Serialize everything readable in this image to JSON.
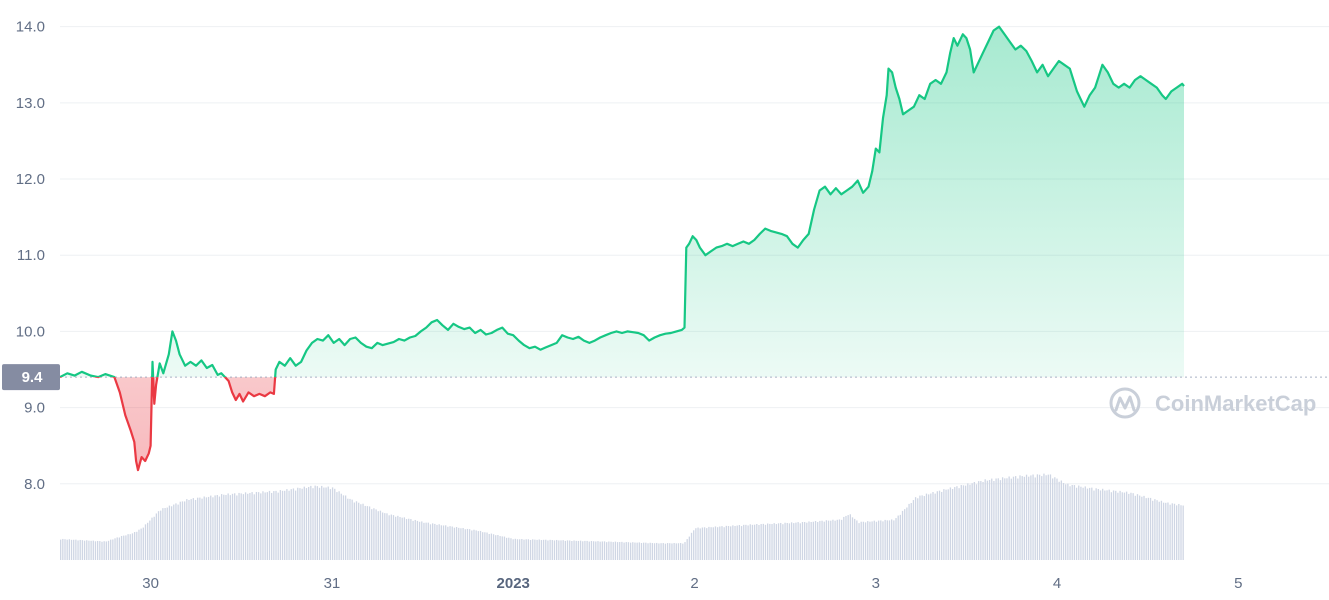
{
  "chart_data": {
    "type": "area",
    "y_ticks": [
      "14.0",
      "13.0",
      "12.0",
      "11.0",
      "10.0",
      "9.0",
      "8.0"
    ],
    "y_tick_values": [
      14.0,
      13.0,
      12.0,
      11.0,
      10.0,
      9.0,
      8.0
    ],
    "ylim": [
      7.0,
      14.35
    ],
    "x_ticks": [
      {
        "label": "30",
        "t": 0.5,
        "bold": false
      },
      {
        "label": "31",
        "t": 1.5,
        "bold": false
      },
      {
        "label": "2023",
        "t": 2.5,
        "bold": true
      },
      {
        "label": "2",
        "t": 3.5,
        "bold": false
      },
      {
        "label": "3",
        "t": 4.5,
        "bold": false
      },
      {
        "label": "4",
        "t": 5.5,
        "bold": false
      },
      {
        "label": "5",
        "t": 6.5,
        "bold": false
      }
    ],
    "xlim": [
      0.0,
      7.0
    ],
    "baseline": {
      "label": "9.4",
      "value": 9.4
    },
    "colors": {
      "up": "#16c784",
      "down": "#ea3943",
      "volume": "#cfd6e4",
      "tag_bg": "#858ca2",
      "grid": "#eef0f3"
    },
    "watermark": "CoinMarketCap",
    "price_series": [
      [
        0.0,
        9.4
      ],
      [
        0.04,
        9.45
      ],
      [
        0.08,
        9.42
      ],
      [
        0.12,
        9.47
      ],
      [
        0.17,
        9.42
      ],
      [
        0.21,
        9.4
      ],
      [
        0.25,
        9.44
      ],
      [
        0.3,
        9.4
      ],
      [
        0.33,
        9.2
      ],
      [
        0.36,
        8.9
      ],
      [
        0.39,
        8.7
      ],
      [
        0.41,
        8.55
      ],
      [
        0.42,
        8.3
      ],
      [
        0.43,
        8.18
      ],
      [
        0.45,
        8.35
      ],
      [
        0.47,
        8.3
      ],
      [
        0.49,
        8.4
      ],
      [
        0.5,
        8.5
      ],
      [
        0.51,
        9.6
      ],
      [
        0.52,
        9.05
      ],
      [
        0.53,
        9.3
      ],
      [
        0.55,
        9.58
      ],
      [
        0.57,
        9.45
      ],
      [
        0.6,
        9.7
      ],
      [
        0.62,
        10.0
      ],
      [
        0.64,
        9.88
      ],
      [
        0.66,
        9.7
      ],
      [
        0.69,
        9.55
      ],
      [
        0.72,
        9.6
      ],
      [
        0.75,
        9.55
      ],
      [
        0.78,
        9.62
      ],
      [
        0.81,
        9.52
      ],
      [
        0.84,
        9.56
      ],
      [
        0.87,
        9.43
      ],
      [
        0.89,
        9.45
      ],
      [
        0.91,
        9.4
      ],
      [
        0.93,
        9.35
      ],
      [
        0.95,
        9.2
      ],
      [
        0.97,
        9.1
      ],
      [
        0.99,
        9.18
      ],
      [
        1.01,
        9.08
      ],
      [
        1.04,
        9.2
      ],
      [
        1.07,
        9.15
      ],
      [
        1.1,
        9.18
      ],
      [
        1.13,
        9.15
      ],
      [
        1.16,
        9.2
      ],
      [
        1.18,
        9.18
      ],
      [
        1.19,
        9.5
      ],
      [
        1.21,
        9.6
      ],
      [
        1.24,
        9.55
      ],
      [
        1.27,
        9.65
      ],
      [
        1.3,
        9.55
      ],
      [
        1.33,
        9.6
      ],
      [
        1.36,
        9.75
      ],
      [
        1.39,
        9.85
      ],
      [
        1.42,
        9.9
      ],
      [
        1.45,
        9.88
      ],
      [
        1.48,
        9.95
      ],
      [
        1.51,
        9.85
      ],
      [
        1.54,
        9.9
      ],
      [
        1.57,
        9.82
      ],
      [
        1.6,
        9.9
      ],
      [
        1.63,
        9.92
      ],
      [
        1.66,
        9.85
      ],
      [
        1.69,
        9.8
      ],
      [
        1.72,
        9.78
      ],
      [
        1.75,
        9.85
      ],
      [
        1.78,
        9.82
      ],
      [
        1.81,
        9.84
      ],
      [
        1.84,
        9.86
      ],
      [
        1.87,
        9.9
      ],
      [
        1.9,
        9.88
      ],
      [
        1.93,
        9.92
      ],
      [
        1.96,
        9.94
      ],
      [
        1.99,
        10.0
      ],
      [
        2.02,
        10.05
      ],
      [
        2.05,
        10.12
      ],
      [
        2.08,
        10.15
      ],
      [
        2.11,
        10.08
      ],
      [
        2.14,
        10.02
      ],
      [
        2.17,
        10.1
      ],
      [
        2.2,
        10.06
      ],
      [
        2.23,
        10.03
      ],
      [
        2.26,
        10.05
      ],
      [
        2.29,
        9.98
      ],
      [
        2.32,
        10.02
      ],
      [
        2.35,
        9.96
      ],
      [
        2.38,
        9.98
      ],
      [
        2.41,
        10.02
      ],
      [
        2.44,
        10.05
      ],
      [
        2.47,
        9.97
      ],
      [
        2.5,
        9.95
      ],
      [
        2.53,
        9.88
      ],
      [
        2.56,
        9.82
      ],
      [
        2.59,
        9.78
      ],
      [
        2.62,
        9.8
      ],
      [
        2.65,
        9.76
      ],
      [
        2.68,
        9.79
      ],
      [
        2.71,
        9.82
      ],
      [
        2.74,
        9.85
      ],
      [
        2.77,
        9.95
      ],
      [
        2.8,
        9.92
      ],
      [
        2.83,
        9.9
      ],
      [
        2.86,
        9.93
      ],
      [
        2.89,
        9.88
      ],
      [
        2.92,
        9.85
      ],
      [
        2.95,
        9.88
      ],
      [
        2.98,
        9.92
      ],
      [
        3.01,
        9.95
      ],
      [
        3.04,
        9.98
      ],
      [
        3.07,
        10.0
      ],
      [
        3.1,
        9.98
      ],
      [
        3.13,
        10.0
      ],
      [
        3.16,
        9.99
      ],
      [
        3.19,
        9.98
      ],
      [
        3.22,
        9.95
      ],
      [
        3.25,
        9.88
      ],
      [
        3.28,
        9.92
      ],
      [
        3.31,
        9.95
      ],
      [
        3.34,
        9.97
      ],
      [
        3.37,
        9.98
      ],
      [
        3.4,
        10.0
      ],
      [
        3.43,
        10.02
      ],
      [
        3.445,
        10.05
      ],
      [
        3.455,
        11.1
      ],
      [
        3.47,
        11.15
      ],
      [
        3.49,
        11.25
      ],
      [
        3.51,
        11.2
      ],
      [
        3.53,
        11.1
      ],
      [
        3.56,
        11.0
      ],
      [
        3.59,
        11.05
      ],
      [
        3.62,
        11.1
      ],
      [
        3.65,
        11.12
      ],
      [
        3.68,
        11.15
      ],
      [
        3.71,
        11.12
      ],
      [
        3.74,
        11.15
      ],
      [
        3.77,
        11.18
      ],
      [
        3.8,
        11.15
      ],
      [
        3.83,
        11.2
      ],
      [
        3.86,
        11.28
      ],
      [
        3.89,
        11.35
      ],
      [
        3.92,
        11.32
      ],
      [
        3.95,
        11.3
      ],
      [
        3.98,
        11.28
      ],
      [
        4.01,
        11.25
      ],
      [
        4.04,
        11.15
      ],
      [
        4.07,
        11.1
      ],
      [
        4.1,
        11.2
      ],
      [
        4.13,
        11.28
      ],
      [
        4.16,
        11.6
      ],
      [
        4.19,
        11.85
      ],
      [
        4.22,
        11.9
      ],
      [
        4.25,
        11.8
      ],
      [
        4.28,
        11.88
      ],
      [
        4.31,
        11.8
      ],
      [
        4.34,
        11.85
      ],
      [
        4.37,
        11.9
      ],
      [
        4.4,
        11.98
      ],
      [
        4.43,
        11.82
      ],
      [
        4.46,
        11.9
      ],
      [
        4.48,
        12.1
      ],
      [
        4.5,
        12.4
      ],
      [
        4.52,
        12.35
      ],
      [
        4.54,
        12.8
      ],
      [
        4.56,
        13.1
      ],
      [
        4.57,
        13.45
      ],
      [
        4.59,
        13.4
      ],
      [
        4.61,
        13.2
      ],
      [
        4.63,
        13.05
      ],
      [
        4.65,
        12.85
      ],
      [
        4.68,
        12.9
      ],
      [
        4.71,
        12.95
      ],
      [
        4.74,
        13.1
      ],
      [
        4.77,
        13.05
      ],
      [
        4.8,
        13.25
      ],
      [
        4.83,
        13.3
      ],
      [
        4.86,
        13.25
      ],
      [
        4.89,
        13.4
      ],
      [
        4.91,
        13.65
      ],
      [
        4.93,
        13.85
      ],
      [
        4.95,
        13.75
      ],
      [
        4.98,
        13.9
      ],
      [
        5.0,
        13.85
      ],
      [
        5.02,
        13.7
      ],
      [
        5.04,
        13.4
      ],
      [
        5.06,
        13.5
      ],
      [
        5.09,
        13.65
      ],
      [
        5.12,
        13.8
      ],
      [
        5.15,
        13.95
      ],
      [
        5.18,
        14.0
      ],
      [
        5.21,
        13.9
      ],
      [
        5.24,
        13.8
      ],
      [
        5.27,
        13.7
      ],
      [
        5.3,
        13.75
      ],
      [
        5.33,
        13.68
      ],
      [
        5.36,
        13.55
      ],
      [
        5.39,
        13.4
      ],
      [
        5.42,
        13.5
      ],
      [
        5.45,
        13.35
      ],
      [
        5.48,
        13.45
      ],
      [
        5.51,
        13.55
      ],
      [
        5.54,
        13.5
      ],
      [
        5.57,
        13.45
      ],
      [
        5.59,
        13.3
      ],
      [
        5.61,
        13.15
      ],
      [
        5.63,
        13.05
      ],
      [
        5.65,
        12.95
      ],
      [
        5.68,
        13.1
      ],
      [
        5.71,
        13.2
      ],
      [
        5.73,
        13.35
      ],
      [
        5.75,
        13.5
      ],
      [
        5.78,
        13.4
      ],
      [
        5.81,
        13.25
      ],
      [
        5.84,
        13.2
      ],
      [
        5.87,
        13.25
      ],
      [
        5.9,
        13.2
      ],
      [
        5.93,
        13.3
      ],
      [
        5.96,
        13.35
      ],
      [
        5.99,
        13.3
      ],
      [
        6.02,
        13.25
      ],
      [
        6.05,
        13.2
      ],
      [
        6.08,
        13.1
      ],
      [
        6.1,
        13.05
      ],
      [
        6.13,
        13.15
      ],
      [
        6.16,
        13.2
      ],
      [
        6.19,
        13.25
      ],
      [
        6.2,
        13.22
      ]
    ],
    "volume_profile": [
      [
        0.0,
        0.25
      ],
      [
        0.25,
        0.22
      ],
      [
        0.33,
        0.28
      ],
      [
        0.4,
        0.32
      ],
      [
        0.45,
        0.38
      ],
      [
        0.55,
        0.6
      ],
      [
        0.7,
        0.72
      ],
      [
        0.9,
        0.78
      ],
      [
        1.2,
        0.82
      ],
      [
        1.4,
        0.88
      ],
      [
        1.5,
        0.86
      ],
      [
        1.6,
        0.72
      ],
      [
        1.8,
        0.55
      ],
      [
        2.0,
        0.45
      ],
      [
        2.3,
        0.35
      ],
      [
        2.5,
        0.25
      ],
      [
        3.0,
        0.22
      ],
      [
        3.3,
        0.2
      ],
      [
        3.44,
        0.2
      ],
      [
        3.5,
        0.38
      ],
      [
        3.8,
        0.42
      ],
      [
        4.1,
        0.45
      ],
      [
        4.3,
        0.48
      ],
      [
        4.35,
        0.55
      ],
      [
        4.4,
        0.45
      ],
      [
        4.6,
        0.48
      ],
      [
        4.72,
        0.75
      ],
      [
        4.9,
        0.85
      ],
      [
        5.1,
        0.95
      ],
      [
        5.3,
        1.0
      ],
      [
        5.45,
        1.02
      ],
      [
        5.55,
        0.9
      ],
      [
        5.7,
        0.85
      ],
      [
        5.9,
        0.8
      ],
      [
        6.1,
        0.68
      ],
      [
        6.2,
        0.65
      ]
    ]
  }
}
